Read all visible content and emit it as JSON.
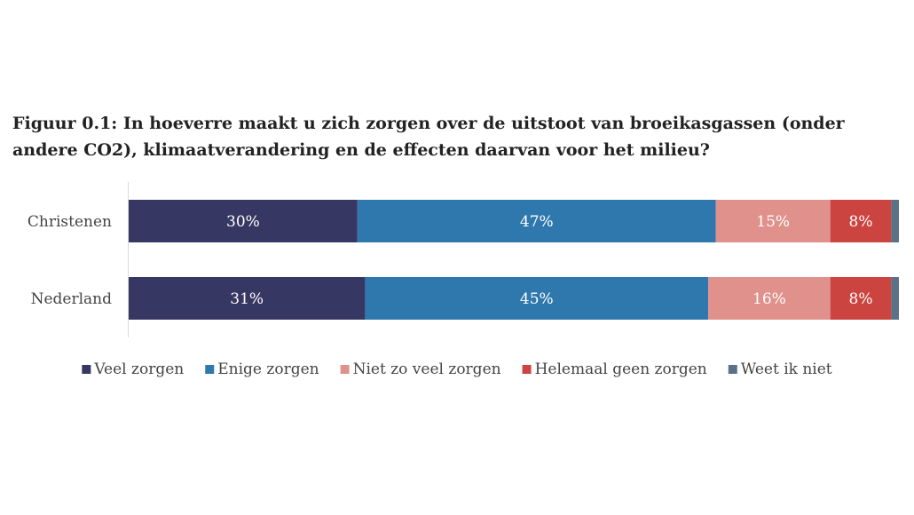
{
  "chart_data": {
    "type": "bar",
    "orientation": "horizontal",
    "stacked": true,
    "title": "Figuur 0.1: In hoeverre maakt u zich zorgen over de uitstoot van broeikasgassen (onder andere CO2), klimaatverandering en de effecten daarvan voor het milieu?",
    "categories": [
      "Christenen",
      "Nederland"
    ],
    "series": [
      {
        "name": "Veel zorgen",
        "color": "#363863",
        "values": [
          30,
          31
        ],
        "labels": [
          "30%",
          "31%"
        ]
      },
      {
        "name": "Enige zorgen",
        "color": "#2e78ad",
        "values": [
          47,
          45
        ],
        "labels": [
          "47%",
          "45%"
        ]
      },
      {
        "name": "Niet zo veel zorgen",
        "color": "#e0918c",
        "values": [
          15,
          16
        ],
        "labels": [
          "15%",
          "16%"
        ]
      },
      {
        "name": "Helemaal geen zorgen",
        "color": "#cc4440",
        "values": [
          8,
          8
        ],
        "labels": [
          "8%",
          "8%"
        ]
      },
      {
        "name": "Weet ik niet",
        "color": "#5a7187",
        "values": [
          1,
          1
        ],
        "labels": [
          "",
          ""
        ]
      }
    ],
    "xlim": [
      0,
      101
    ],
    "grid": false,
    "legend_position": "bottom"
  }
}
